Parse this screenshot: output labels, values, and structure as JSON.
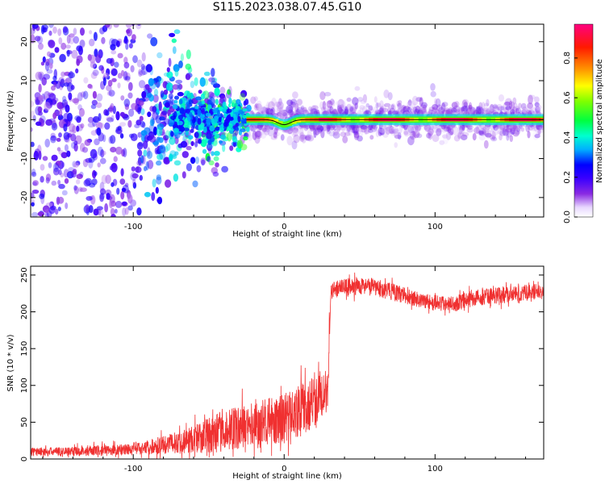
{
  "title": "S115.2023.038.07.45.G10",
  "colors": {
    "snr_line": "#f03030",
    "ridge_line": "#000000",
    "frame": "#000000"
  },
  "chart_data": [
    {
      "type": "heatmap",
      "title": "",
      "xlabel": "Height of straight line (km)",
      "ylabel": "Frequency (Hz)",
      "xlim": [
        -168,
        172
      ],
      "ylim": [
        -25,
        24.5
      ],
      "xticks": [
        -100,
        0,
        100
      ],
      "xtick_labels": [
        "-100",
        "0",
        "100"
      ],
      "yticks": [
        -20,
        -10,
        0,
        10,
        20
      ],
      "ytick_labels": [
        "-20",
        "-10",
        "0",
        "10",
        "20"
      ],
      "grid": false,
      "colorbar": {
        "label": "Normalized spectral amplitude",
        "range": [
          0,
          0.97
        ],
        "ticks": [
          0,
          0.2,
          0.4,
          0.6,
          0.8
        ],
        "tick_labels": [
          "0.0",
          "0.2",
          "0.4",
          "0.6",
          "0.8"
        ],
        "colormap": "rainbow (white-violet-blue-cyan-green-yellow-orange-red-magenta)"
      },
      "ridge": {
        "x_start": -25,
        "x_end": 172,
        "frequency": 0,
        "dip": {
          "x": 0,
          "frequency": -1.3
        }
      },
      "regions": [
        {
          "x_range": [
            -168,
            -95
          ],
          "character": "diffuse scatter across band",
          "amplitude": 0.15
        },
        {
          "x_range": [
            -95,
            -25
          ],
          "character": "scatter narrowing toward 0 Hz",
          "amplitude": 0.3
        },
        {
          "x_range": [
            -25,
            172
          ],
          "character": "coherent carrier line at 0 Hz",
          "amplitude": 0.9
        }
      ]
    },
    {
      "type": "line",
      "title": "",
      "xlabel": "Height of straight line (km)",
      "ylabel": "SNR (10 * v/v)",
      "xlim": [
        -168,
        172
      ],
      "ylim": [
        0,
        262
      ],
      "xticks": [
        -100,
        0,
        100
      ],
      "xtick_labels": [
        "-100",
        "0",
        "100"
      ],
      "yticks": [
        0,
        50,
        100,
        150,
        200,
        250
      ],
      "ytick_labels": [
        "0",
        "50",
        "100",
        "150",
        "200",
        "250"
      ],
      "grid": false,
      "series": [
        {
          "x": [
            -168,
            -150,
            -130,
            -110,
            -100,
            -90,
            -80,
            -70,
            -60,
            -50,
            -40,
            -30,
            -20,
            -10,
            0,
            10,
            15,
            20,
            25,
            29,
            30,
            31,
            33,
            40,
            50,
            60,
            70,
            80,
            90,
            100,
            105,
            110,
            115,
            120,
            130,
            140,
            150,
            160,
            172
          ],
          "values": [
            10,
            10,
            11,
            12,
            14,
            16,
            19,
            23,
            27,
            32,
            38,
            42,
            45,
            50,
            55,
            65,
            70,
            78,
            88,
            96,
            170,
            228,
            230,
            233,
            236,
            233,
            228,
            222,
            216,
            212,
            211,
            210,
            212,
            216,
            220,
            222,
            224,
            226,
            228
          ],
          "noise_amplitude": [
            6,
            6,
            7,
            8,
            9,
            10,
            12,
            15,
            20,
            24,
            28,
            30,
            32,
            33,
            34,
            36,
            36,
            36,
            34,
            30,
            20,
            12,
            12,
            12,
            12,
            12,
            12,
            11,
            11,
            11,
            11,
            11,
            11,
            11,
            11,
            11,
            11,
            11,
            11
          ]
        }
      ]
    }
  ]
}
